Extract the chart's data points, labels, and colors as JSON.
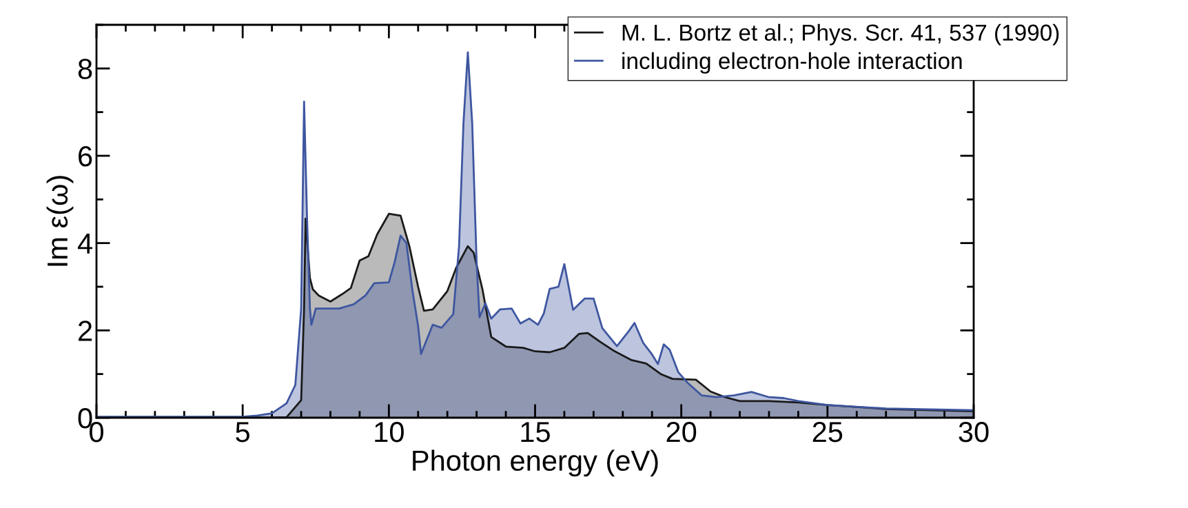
{
  "chart_data": {
    "type": "area",
    "xlabel": "Photon energy (eV)",
    "ylabel": "Im ε(ω)",
    "xlim": [
      0,
      30
    ],
    "ylim": [
      0,
      9
    ],
    "xticks": [
      0,
      5,
      10,
      15,
      20,
      25,
      30
    ],
    "yticks": [
      0,
      2,
      4,
      6,
      8
    ],
    "grid": false,
    "legend": "top right",
    "marker": "none",
    "line_style": "solid",
    "series": [
      {
        "name": "M. L. Bortz et al.; Phys. Scr. 41, 537 (1990)",
        "color": "#1a1a1a",
        "x": [
          0,
          6,
          6.5,
          7.0,
          7.1,
          7.15,
          7.3,
          7.4,
          7.6,
          8.0,
          8.4,
          8.7,
          9.0,
          9.3,
          9.6,
          10.0,
          10.4,
          10.7,
          11.0,
          11.2,
          11.5,
          12.0,
          12.3,
          12.7,
          12.9,
          13.2,
          13.5,
          14.0,
          14.6,
          15.0,
          15.5,
          16.0,
          16.5,
          16.8,
          17.2,
          17.7,
          18.3,
          18.8,
          19.3,
          19.7,
          20.5,
          21.0,
          21.5,
          22.0,
          23.0,
          24.0,
          25.0,
          27.0,
          30.0
        ],
        "values": [
          0,
          0,
          0.01,
          0.4,
          2.5,
          4.56,
          3.2,
          2.94,
          2.8,
          2.66,
          2.83,
          2.97,
          3.6,
          3.7,
          4.2,
          4.67,
          4.63,
          3.93,
          3.0,
          2.45,
          2.48,
          2.9,
          3.43,
          3.93,
          3.78,
          2.94,
          1.85,
          1.63,
          1.6,
          1.52,
          1.5,
          1.6,
          1.92,
          1.94,
          1.75,
          1.53,
          1.32,
          1.24,
          1.0,
          0.89,
          0.87,
          0.6,
          0.47,
          0.38,
          0.38,
          0.35,
          0.29,
          0.2,
          0.15
        ]
      },
      {
        "name": "including electron-hole interaction",
        "color": "#3e56a0",
        "x": [
          0,
          5,
          5.5,
          6.0,
          6.5,
          6.8,
          7.0,
          7.1,
          7.2,
          7.3,
          7.35,
          7.5,
          8.0,
          8.3,
          8.8,
          9.2,
          9.5,
          10.0,
          10.2,
          10.4,
          10.6,
          10.8,
          11.0,
          11.1,
          11.5,
          11.8,
          12.2,
          12.4,
          12.55,
          12.7,
          12.85,
          13.0,
          13.1,
          13.3,
          13.5,
          13.8,
          14.2,
          14.5,
          14.8,
          15.1,
          15.3,
          15.5,
          15.8,
          16.0,
          16.3,
          16.7,
          17.0,
          17.3,
          17.8,
          18.2,
          18.4,
          18.7,
          19.0,
          19.2,
          19.4,
          19.6,
          19.9,
          20.2,
          20.7,
          21.2,
          21.8,
          22.4,
          23.0,
          23.5,
          24.0,
          25.0,
          27.0,
          30.0
        ],
        "values": [
          0.02,
          0.02,
          0.05,
          0.1,
          0.33,
          0.75,
          2.5,
          7.24,
          4.6,
          2.5,
          2.13,
          2.5,
          2.5,
          2.5,
          2.6,
          2.8,
          3.08,
          3.1,
          3.57,
          4.17,
          4.0,
          2.94,
          2.1,
          1.46,
          2.13,
          2.06,
          2.37,
          3.93,
          6.74,
          8.37,
          6.74,
          3.57,
          2.3,
          2.62,
          2.27,
          2.48,
          2.5,
          2.16,
          2.27,
          2.13,
          2.39,
          2.95,
          3.0,
          3.52,
          2.47,
          2.73,
          2.73,
          2.05,
          1.64,
          1.98,
          2.17,
          1.71,
          1.45,
          1.23,
          1.68,
          1.56,
          1.04,
          0.81,
          0.51,
          0.47,
          0.51,
          0.59,
          0.47,
          0.45,
          0.38,
          0.29,
          0.21,
          0.17
        ]
      }
    ]
  }
}
